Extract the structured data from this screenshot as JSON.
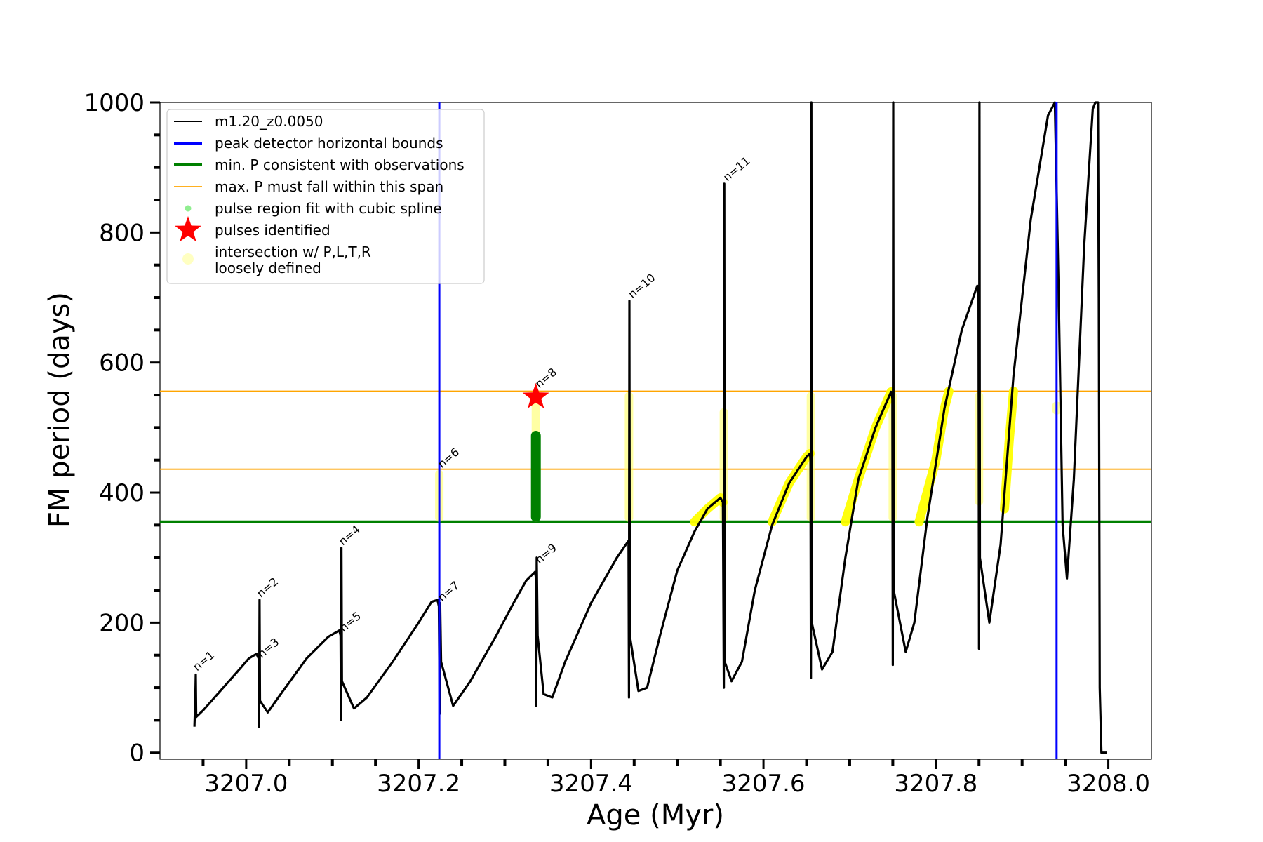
{
  "chart_data": {
    "type": "line",
    "xlabel": "Age (Myr)",
    "ylabel": "FM period (days)",
    "xlim": [
      3206.9,
      3208.05
    ],
    "ylim": [
      -10,
      1000
    ],
    "x_ticks": [
      3207.0,
      3207.2,
      3207.4,
      3207.6,
      3207.8,
      3208.0
    ],
    "x_tick_labels": [
      "3207.0",
      "3207.2",
      "3207.4",
      "3207.6",
      "3207.8",
      "3208.0"
    ],
    "y_ticks": [
      0,
      200,
      400,
      600,
      800,
      1000
    ],
    "y_tick_labels": [
      "0",
      "200",
      "400",
      "600",
      "800",
      "1000"
    ],
    "series": [
      {
        "name": "m1.20_z0.0050",
        "color": "#000000",
        "points": [
          [
            3206.94,
            40
          ],
          [
            3206.941,
            85
          ],
          [
            3206.9415,
            120
          ],
          [
            3206.942,
            55
          ],
          [
            3206.95,
            65
          ],
          [
            3206.97,
            95
          ],
          [
            3206.99,
            125
          ],
          [
            3207.003,
            145
          ],
          [
            3207.012,
            152
          ],
          [
            3207.0145,
            145
          ],
          [
            3207.015,
            40
          ],
          [
            3207.0155,
            235
          ],
          [
            3207.016,
            80
          ],
          [
            3207.025,
            62
          ],
          [
            3207.04,
            90
          ],
          [
            3207.07,
            145
          ],
          [
            3207.095,
            178
          ],
          [
            3207.108,
            188
          ],
          [
            3207.1095,
            180
          ],
          [
            3207.11,
            50
          ],
          [
            3207.1105,
            315
          ],
          [
            3207.111,
            110
          ],
          [
            3207.125,
            68
          ],
          [
            3207.14,
            85
          ],
          [
            3207.17,
            140
          ],
          [
            3207.2,
            200
          ],
          [
            3207.215,
            232
          ],
          [
            3207.222,
            235
          ],
          [
            3207.2235,
            225
          ],
          [
            3207.2245,
            60
          ],
          [
            3207.225,
            230
          ],
          [
            3207.226,
            140
          ],
          [
            3207.24,
            72
          ],
          [
            3207.26,
            110
          ],
          [
            3207.29,
            180
          ],
          [
            3207.31,
            230
          ],
          [
            3207.325,
            265
          ],
          [
            3207.335,
            278
          ],
          [
            3207.336,
            270
          ],
          [
            3207.3365,
            72
          ],
          [
            3207.337,
            300
          ],
          [
            3207.338,
            180
          ],
          [
            3207.345,
            90
          ],
          [
            3207.355,
            85
          ],
          [
            3207.37,
            140
          ],
          [
            3207.4,
            230
          ],
          [
            3207.43,
            300
          ],
          [
            3207.443,
            325
          ],
          [
            3207.4435,
            320
          ],
          [
            3207.444,
            85
          ],
          [
            3207.4445,
            695
          ],
          [
            3207.445,
            180
          ],
          [
            3207.455,
            95
          ],
          [
            3207.465,
            100
          ],
          [
            3207.48,
            180
          ],
          [
            3207.5,
            280
          ],
          [
            3207.52,
            340
          ],
          [
            3207.535,
            375
          ],
          [
            3207.55,
            392
          ],
          [
            3207.553,
            385
          ],
          [
            3207.554,
            100
          ],
          [
            3207.5545,
            875
          ],
          [
            3207.555,
            140
          ],
          [
            3207.563,
            110
          ],
          [
            3207.575,
            140
          ],
          [
            3207.59,
            250
          ],
          [
            3207.61,
            350
          ],
          [
            3207.63,
            415
          ],
          [
            3207.65,
            455
          ],
          [
            3207.654,
            460
          ],
          [
            3207.6545,
            450
          ],
          [
            3207.655,
            115
          ],
          [
            3207.6555,
            1000
          ],
          [
            3207.656,
            200
          ],
          [
            3207.668,
            128
          ],
          [
            3207.68,
            155
          ],
          [
            3207.695,
            300
          ],
          [
            3207.71,
            420
          ],
          [
            3207.73,
            500
          ],
          [
            3207.748,
            555
          ],
          [
            3207.7495,
            545
          ],
          [
            3207.75,
            135
          ],
          [
            3207.7505,
            1000
          ],
          [
            3207.751,
            250
          ],
          [
            3207.765,
            155
          ],
          [
            3207.775,
            200
          ],
          [
            3207.79,
            360
          ],
          [
            3207.81,
            530
          ],
          [
            3207.83,
            650
          ],
          [
            3207.848,
            718
          ],
          [
            3207.8495,
            710
          ],
          [
            3207.85,
            160
          ],
          [
            3207.8505,
            1000
          ],
          [
            3207.851,
            300
          ],
          [
            3207.862,
            200
          ],
          [
            3207.875,
            320
          ],
          [
            3207.89,
            580
          ],
          [
            3207.91,
            820
          ],
          [
            3207.93,
            980
          ],
          [
            3207.938,
            1000
          ],
          [
            3207.9425,
            700
          ],
          [
            3207.947,
            350
          ],
          [
            3207.952,
            268
          ],
          [
            3207.96,
            420
          ],
          [
            3207.972,
            780
          ],
          [
            3207.982,
            990
          ],
          [
            3207.985,
            1000
          ],
          [
            3207.988,
            1000
          ],
          [
            3207.989,
            700
          ],
          [
            3207.99,
            100
          ],
          [
            3207.992,
            0
          ],
          [
            3207.998,
            0
          ]
        ]
      }
    ],
    "spline_fit": {
      "x": 3207.336,
      "y_range": [
        355,
        495
      ],
      "color": "#008000"
    },
    "pulse_identified": {
      "x": 3207.336,
      "y": 547,
      "color": "#ff0000"
    },
    "intersection_highlights": [
      {
        "x_range": [
          3207.222,
          3207.226
        ],
        "y_range": [
          355,
          435
        ]
      },
      {
        "x_range": [
          3207.334,
          3207.338
        ],
        "y_range": [
          355,
          555
        ]
      },
      {
        "x_range": [
          3207.442,
          3207.446
        ],
        "y_range": [
          355,
          555
        ]
      },
      {
        "x_range": [
          3207.552,
          3207.556
        ],
        "y_range": [
          355,
          530
        ]
      },
      {
        "x_range": [
          3207.653,
          3207.657
        ],
        "y_range": [
          355,
          555
        ]
      },
      {
        "x_range": [
          3207.748,
          3207.752
        ],
        "y_range": [
          355,
          555
        ]
      },
      {
        "x_range": [
          3207.848,
          3207.852
        ],
        "y_range": [
          380,
          555
        ]
      },
      {
        "x_range": [
          3207.938,
          3207.942
        ],
        "y_range": [
          520,
          540
        ]
      },
      {
        "curve": [
          [
            3207.52,
            355
          ],
          [
            3207.535,
            375
          ],
          [
            3207.55,
            392
          ],
          [
            3207.553,
            385
          ]
        ]
      },
      {
        "curve": [
          [
            3207.61,
            355
          ],
          [
            3207.63,
            415
          ],
          [
            3207.65,
            455
          ],
          [
            3207.654,
            460
          ]
        ]
      },
      {
        "curve": [
          [
            3207.695,
            355
          ],
          [
            3207.71,
            420
          ],
          [
            3207.73,
            500
          ],
          [
            3207.748,
            555
          ]
        ]
      },
      {
        "curve": [
          [
            3207.7805,
            355
          ],
          [
            3207.8,
            450
          ],
          [
            3207.81,
            530
          ],
          [
            3207.815,
            556
          ]
        ]
      },
      {
        "curve": [
          [
            3207.8795,
            375
          ],
          [
            3207.885,
            480
          ],
          [
            3207.89,
            556
          ]
        ]
      }
    ],
    "vlines": [
      {
        "x": 3207.224,
        "color": "#0000ff"
      },
      {
        "x": 3207.94,
        "color": "#0000ff"
      }
    ],
    "hlines": [
      {
        "y": 355,
        "color": "#008000",
        "label": "min. P consistent with observations"
      },
      {
        "y": 436,
        "color": "#ffa500",
        "label": "max. P must fall within this span"
      },
      {
        "y": 556,
        "color": "#ffa500",
        "label": "max. P must fall within this span"
      }
    ],
    "annotations": [
      {
        "text": "n=1",
        "x": 3206.943,
        "y": 125
      },
      {
        "text": "n=2",
        "x": 3207.017,
        "y": 238
      },
      {
        "text": "n=3",
        "x": 3207.018,
        "y": 145
      },
      {
        "text": "n=4",
        "x": 3207.112,
        "y": 318
      },
      {
        "text": "n=5",
        "x": 3207.113,
        "y": 185
      },
      {
        "text": "n=6",
        "x": 3207.227,
        "y": 437
      },
      {
        "text": "n=7",
        "x": 3207.227,
        "y": 232
      },
      {
        "text": "n=8",
        "x": 3207.34,
        "y": 560
      },
      {
        "text": "n=9",
        "x": 3207.34,
        "y": 290
      },
      {
        "text": "n=10",
        "x": 3207.448,
        "y": 698
      },
      {
        "text": "n=11",
        "x": 3207.558,
        "y": 878
      }
    ],
    "legend": {
      "position": "top-left",
      "entries": [
        {
          "label": "m1.20_z0.0050",
          "kind": "line-marker",
          "color": "#000000"
        },
        {
          "label": "peak detector horizontal bounds",
          "kind": "line",
          "color": "#0000ff"
        },
        {
          "label": "min. P consistent with observations",
          "kind": "line",
          "color": "#008000"
        },
        {
          "label": "max. P must fall within this span",
          "kind": "thin-line",
          "color": "#ffa500"
        },
        {
          "label": "pulse region fit with cubic spline",
          "kind": "dot",
          "color": "#90ee90"
        },
        {
          "label": "pulses identified",
          "kind": "star",
          "color": "#ff0000"
        },
        {
          "label": "intersection w/ P,L,T,R",
          "label2": "loosely defined",
          "kind": "big-dot",
          "color": "#ffff99"
        }
      ]
    }
  }
}
